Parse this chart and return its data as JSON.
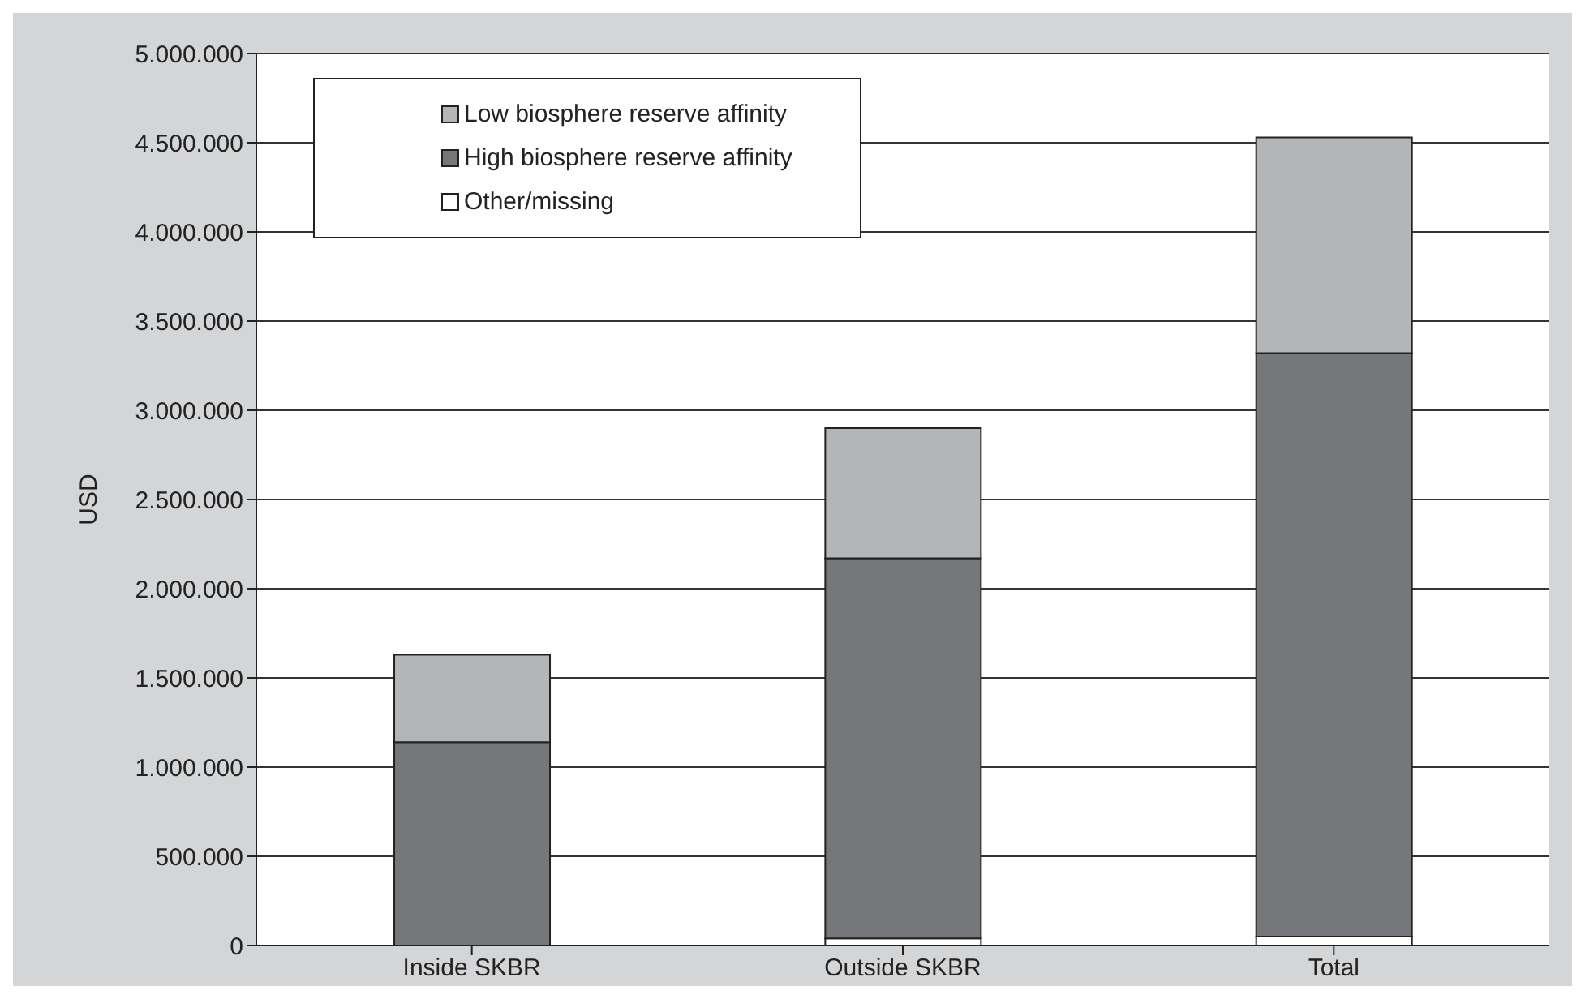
{
  "chart_data": {
    "type": "bar",
    "stacked": true,
    "ylabel": "USD",
    "categories": [
      "Inside SKBR",
      "Outside SKBR",
      "Total"
    ],
    "series": [
      {
        "name": "Other/missing",
        "color": "#ffffff",
        "values": [
          null,
          40000,
          50000
        ]
      },
      {
        "name": "High biosphere reserve affinity",
        "color": "#76777b",
        "values": [
          1140000,
          2130000,
          3270000
        ]
      },
      {
        "name": "Low biosphere reserve affinity",
        "color": "#b4b5b8",
        "values": [
          490000,
          730000,
          1210000
        ]
      }
    ],
    "ylim": [
      0,
      5000000
    ],
    "yticks": [
      {
        "value": 0,
        "label": "0"
      },
      {
        "value": 500000,
        "label": "500.000"
      },
      {
        "value": 1000000,
        "label": "1.000.000"
      },
      {
        "value": 1500000,
        "label": "1.500.000"
      },
      {
        "value": 2000000,
        "label": "2.000.000"
      },
      {
        "value": 2500000,
        "label": "2.500.000"
      },
      {
        "value": 3000000,
        "label": "3.000.000"
      },
      {
        "value": 3500000,
        "label": "3.500.000"
      },
      {
        "value": 4000000,
        "label": "4.000.000"
      },
      {
        "value": 4500000,
        "label": "4.500.000"
      },
      {
        "value": 5000000,
        "label": "5.000.000"
      }
    ],
    "grid": "y",
    "legend": "top left"
  }
}
